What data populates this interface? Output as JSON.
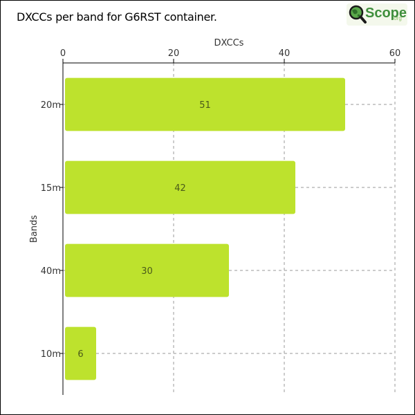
{
  "header": {
    "title": "DXCCs per band for G6RST container.",
    "logo_text": "Scope",
    "logo_sub": ".org"
  },
  "colors": {
    "bar": "#bde22d",
    "grid": "#999999",
    "axis": "#000000",
    "logo_green": "#3f8f3c"
  },
  "icons": {
    "logo_icon": "magnifier-globe-icon"
  },
  "chart_data": {
    "type": "bar",
    "orientation": "horizontal",
    "title": "DXCCs per band for G6RST container.",
    "xlabel": "DXCCs",
    "ylabel": "Bands",
    "categories": [
      "20m",
      "15m",
      "40m",
      "10m"
    ],
    "values": [
      51,
      42,
      30,
      6
    ],
    "xlim": [
      0,
      60
    ],
    "xticks": [
      0,
      20,
      40,
      60
    ],
    "x_axis_position": "top",
    "grid": true,
    "data_labels": true
  }
}
